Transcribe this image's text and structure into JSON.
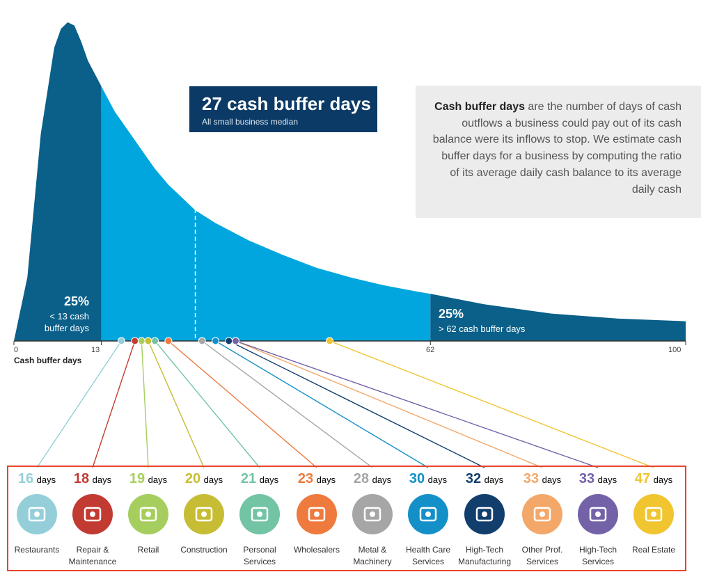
{
  "median": {
    "title": "27 cash buffer days",
    "subtitle": "All small business median",
    "value": 27
  },
  "definition": {
    "bold": "Cash buffer days",
    "text": " are the number of days of cash outflows a business could pay out of its cash balance were its inflows to stop. We estimate cash buffer days for a business by computing the ratio of its average daily cash balance to its average daily cash"
  },
  "low_quartile": {
    "percent": "25%",
    "line1": "< 13 cash",
    "line2": "buffer days",
    "threshold": 13
  },
  "high_quartile": {
    "percent": "25%",
    "label": "> 62 cash buffer days",
    "threshold": 62
  },
  "colors": {
    "dark": "#0a6089",
    "light": "#00a6dd",
    "navy": "#0b3a66",
    "frame": "#e8442a"
  },
  "chart_data": {
    "type": "area",
    "xlabel": "Cash buffer days",
    "xlim": [
      0,
      100
    ],
    "x_ticks": [
      "0",
      "13",
      "62",
      "100"
    ],
    "x_tick_values": [
      0,
      13,
      62,
      100
    ],
    "curve": {
      "x": [
        0,
        2,
        4,
        6,
        7,
        8,
        9,
        10,
        11,
        12,
        13,
        15,
        17,
        19,
        21,
        23,
        25,
        27,
        30,
        35,
        40,
        45,
        50,
        55,
        60,
        62,
        70,
        80,
        90,
        100
      ],
      "y": [
        0,
        20,
        65,
        92,
        98,
        100,
        99,
        94,
        88,
        84,
        80,
        72,
        66,
        60,
        54,
        49,
        45,
        41,
        37,
        31.5,
        27,
        23,
        20,
        17.5,
        15.5,
        14.8,
        11.5,
        8.6,
        7,
        6.2
      ]
    },
    "industries": [
      {
        "name": "Restaurants",
        "days": 16,
        "color": "#94cfd9",
        "icon": "restaurant-icon"
      },
      {
        "name": "Repair & Maintenance",
        "days": 18,
        "color": "#c23b33",
        "icon": "toolbox-icon"
      },
      {
        "name": "Retail",
        "days": 19,
        "color": "#a6ce5e",
        "icon": "shopping-bag-icon"
      },
      {
        "name": "Construction",
        "days": 20,
        "color": "#c7bd35",
        "icon": "hard-hat-icon"
      },
      {
        "name": "Personal Services",
        "days": 21,
        "color": "#72c4a4",
        "icon": "hanger-icon"
      },
      {
        "name": "Wholesalers",
        "days": 23,
        "color": "#ee7a3e",
        "icon": "boxes-icon"
      },
      {
        "name": "Metal & Machinery",
        "days": 28,
        "color": "#a6a6a6",
        "icon": "gears-icon"
      },
      {
        "name": "Health Care Services",
        "days": 30,
        "color": "#1390c8",
        "icon": "caduceus-icon"
      },
      {
        "name": "High-Tech Manufacturing",
        "days": 32,
        "color": "#123e6e",
        "icon": "circuit-chip-icon"
      },
      {
        "name": "Other Prof. Services",
        "days": 33,
        "color": "#f3a86a",
        "icon": "briefcase-icon"
      },
      {
        "name": "High-Tech Services",
        "days": 33,
        "color": "#7462a8",
        "icon": "computer-icon"
      },
      {
        "name": "Real Estate",
        "days": 47,
        "color": "#f0c530",
        "icon": "for-sale-sign-icon"
      }
    ]
  },
  "industry_labels": [
    {
      "num": "16",
      "unit": "days",
      "l1": "Restaurants",
      "l2": ""
    },
    {
      "num": "18",
      "unit": "days",
      "l1": "Repair &",
      "l2": "Maintenance"
    },
    {
      "num": "19",
      "unit": "days",
      "l1": "Retail",
      "l2": ""
    },
    {
      "num": "20",
      "unit": "days",
      "l1": "Construction",
      "l2": ""
    },
    {
      "num": "21",
      "unit": "days",
      "l1": "Personal",
      "l2": "Services"
    },
    {
      "num": "23",
      "unit": "days",
      "l1": "Wholesalers",
      "l2": ""
    },
    {
      "num": "28",
      "unit": "days",
      "l1": "Metal &",
      "l2": "Machinery"
    },
    {
      "num": "30",
      "unit": "days",
      "l1": "Health Care",
      "l2": "Services"
    },
    {
      "num": "32",
      "unit": "days",
      "l1": "High-Tech",
      "l2": "Manufacturing"
    },
    {
      "num": "33",
      "unit": "days",
      "l1": "Other Prof.",
      "l2": "Services"
    },
    {
      "num": "33",
      "unit": "days",
      "l1": "High-Tech",
      "l2": "Services"
    },
    {
      "num": "47",
      "unit": "days",
      "l1": "Real Estate",
      "l2": ""
    }
  ]
}
